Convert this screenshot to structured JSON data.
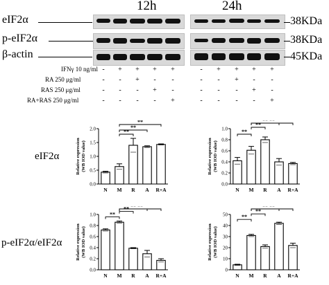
{
  "blot": {
    "time_labels": [
      "12h",
      "24h"
    ],
    "row_labels": [
      "eIF2α",
      "p-eIF2α",
      "β-actin"
    ],
    "kda_labels": [
      "38KDa",
      "38KDa",
      "45KDa"
    ],
    "treatments": [
      {
        "label": "IFNγ 10 ng/ml",
        "marks": [
          "-",
          "+",
          "+",
          "+",
          "+"
        ]
      },
      {
        "label": "RA 250 μg/ml",
        "marks": [
          "-",
          "-",
          "+",
          "-",
          "-"
        ]
      },
      {
        "label": "RAS 250 μg/ml",
        "marks": [
          "-",
          "-",
          "-",
          "+",
          "-"
        ]
      },
      {
        "label": "RA+RAS 250 μg/ml",
        "marks": [
          "-",
          "-",
          "-",
          "-",
          "+"
        ]
      }
    ]
  },
  "row_titles": [
    "eIF2α",
    "p-eIF2α/eIF2α"
  ],
  "chart_data": [
    {
      "type": "bar",
      "ylabel": "Relative expression\n(WB IOD value)",
      "categories": [
        "N",
        "M",
        "R",
        "A",
        "R+A"
      ],
      "values": [
        0.43,
        0.63,
        1.4,
        1.35,
        1.43
      ],
      "errors": [
        0.03,
        0.1,
        0.25,
        0.03,
        0.02
      ],
      "ylim": [
        0,
        2.0
      ],
      "yticks": [
        "0.0",
        "0.5",
        "1.0",
        "1.5",
        "2.0"
      ],
      "brackets": [
        {
          "from": "M",
          "to": "R",
          "label": "**"
        },
        {
          "from": "M",
          "to": "A",
          "label": "**"
        },
        {
          "from": "M",
          "to": "R+A",
          "label": "**"
        }
      ]
    },
    {
      "type": "bar",
      "ylabel": "Relative expression\n(WB IOD value)",
      "categories": [
        "N",
        "M",
        "R",
        "A",
        "R+A"
      ],
      "values": [
        0.42,
        0.61,
        0.8,
        0.4,
        0.37
      ],
      "errors": [
        0.06,
        0.07,
        0.05,
        0.06,
        0.02
      ],
      "ylim": [
        0,
        1.0
      ],
      "yticks": [
        "0.0",
        "0.2",
        "0.4",
        "0.6",
        "0.8",
        "1.0"
      ],
      "brackets": [
        {
          "from": "N",
          "to": "M",
          "label": "**"
        },
        {
          "from": "M",
          "to": "R",
          "label": "**"
        },
        {
          "from": "M",
          "to": "A",
          "label": "**"
        },
        {
          "from": "M",
          "to": "R+A",
          "label": "**"
        }
      ]
    },
    {
      "type": "bar",
      "ylabel": "Relative expression\n(WB IOD value)",
      "categories": [
        "N",
        "M",
        "R",
        "A",
        "R+A"
      ],
      "values": [
        0.72,
        0.86,
        0.39,
        0.29,
        0.17
      ],
      "errors": [
        0.02,
        0.02,
        0.01,
        0.06,
        0.03
      ],
      "ylim": [
        0,
        1.0
      ],
      "yticks": [
        "0.0",
        "0.2",
        "0.4",
        "0.6",
        "0.8",
        "1.0"
      ],
      "brackets": [
        {
          "from": "N",
          "to": "M",
          "label": "**"
        },
        {
          "from": "M",
          "to": "R",
          "label": "**"
        },
        {
          "from": "M",
          "to": "A",
          "label": "**"
        },
        {
          "from": "M",
          "to": "R+A",
          "label": "**"
        }
      ]
    },
    {
      "type": "bar",
      "ylabel": "Relative expression\n(WB IOD value)",
      "categories": [
        "N",
        "M",
        "R",
        "A",
        "R+A"
      ],
      "values": [
        4.5,
        31,
        21,
        42,
        22
      ],
      "errors": [
        0.5,
        1,
        1.5,
        1,
        2
      ],
      "ylim": [
        0,
        50
      ],
      "yticks": [
        "0",
        "10",
        "20",
        "30",
        "40",
        "50"
      ],
      "brackets": [
        {
          "from": "N",
          "to": "M",
          "label": "**"
        },
        {
          "from": "M",
          "to": "R",
          "label": "**"
        },
        {
          "from": "M",
          "to": "A",
          "label": "**"
        },
        {
          "from": "M",
          "to": "R+A",
          "label": "**"
        }
      ]
    }
  ]
}
